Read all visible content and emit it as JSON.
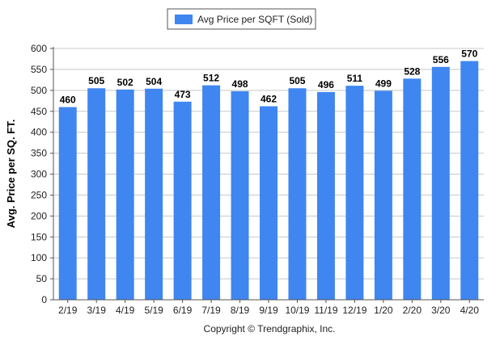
{
  "chart_data": {
    "type": "bar",
    "categories": [
      "2/19",
      "3/19",
      "4/19",
      "5/19",
      "6/19",
      "7/19",
      "8/19",
      "9/19",
      "10/19",
      "11/19",
      "12/19",
      "1/20",
      "2/20",
      "3/20",
      "4/20"
    ],
    "series": [
      {
        "name": "Avg Price per SQFT (Sold)",
        "values": [
          460,
          505,
          502,
          504,
          473,
          512,
          498,
          462,
          505,
          496,
          511,
          499,
          528,
          556,
          570
        ],
        "color": "#3f86f0"
      }
    ],
    "title": "",
    "xlabel": "",
    "ylabel": "Avg. Price per SQ. FT.",
    "ylim": [
      0,
      600
    ],
    "yticks": [
      0,
      50,
      100,
      150,
      200,
      250,
      300,
      350,
      400,
      450,
      500,
      550,
      600
    ],
    "grid": true,
    "legend_position": "top-center",
    "data_labels": true
  },
  "footer": {
    "copyright": "Copyright © Trendgraphix, Inc."
  },
  "colors": {
    "bar": "#3f86f0",
    "gridline": "#c8c8c8",
    "axis": "#555555"
  }
}
